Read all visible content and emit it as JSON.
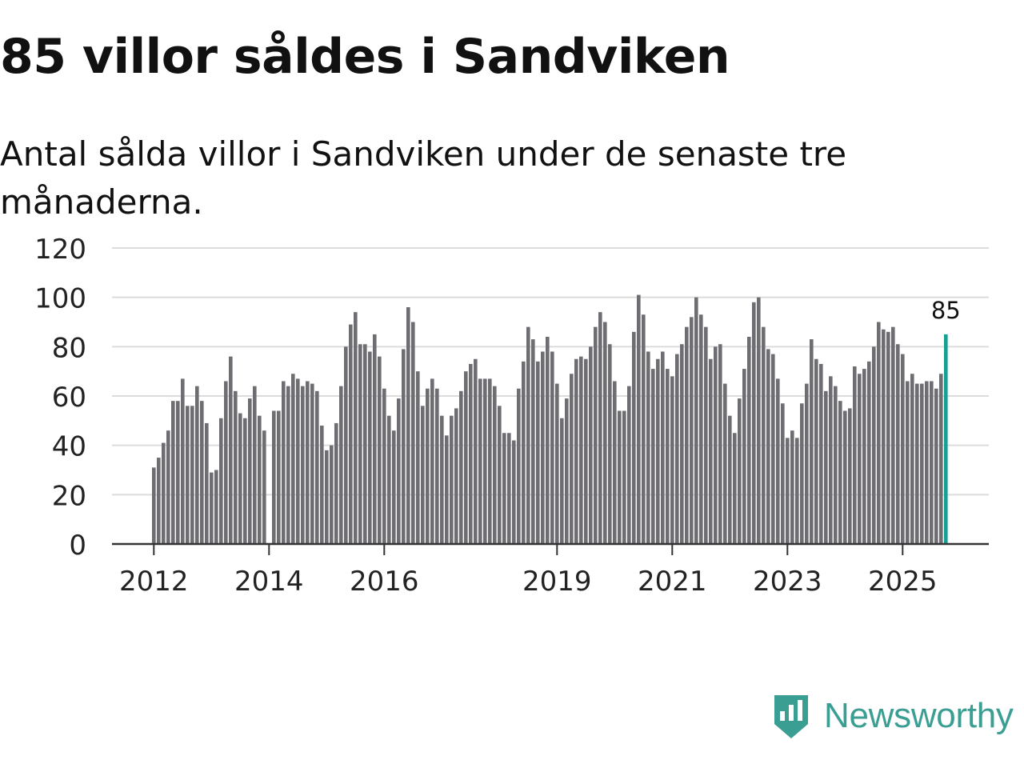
{
  "title": "85 villor såldes i Sandviken",
  "subtitle": "Antal sålda villor i Sandviken under de senaste tre månaderna.",
  "brand": {
    "name": "Newsworthy",
    "color": "#3a9e92"
  },
  "colors": {
    "bar": "#6e6d72",
    "highlight": "#16a093",
    "grid": "#dcdcdc",
    "axis": "#333333"
  },
  "chart_data": {
    "type": "bar",
    "title": "85 villor såldes i Sandviken",
    "xlabel": "",
    "ylabel": "",
    "ylim": [
      0,
      120
    ],
    "yticks": [
      "0",
      "20",
      "40",
      "60",
      "80",
      "100",
      "120"
    ],
    "x_tick_labels": [
      {
        "label": "2012",
        "index": 0
      },
      {
        "label": "2014",
        "index": 24
      },
      {
        "label": "2016",
        "index": 48
      },
      {
        "label": "2019",
        "index": 84
      },
      {
        "label": "2021",
        "index": 108
      },
      {
        "label": "2023",
        "index": 132
      },
      {
        "label": "2025",
        "index": 156
      }
    ],
    "start": "2012-01",
    "values": [
      31,
      35,
      41,
      46,
      58,
      58,
      67,
      56,
      56,
      64,
      58,
      49,
      29,
      30,
      51,
      66,
      76,
      62,
      53,
      51,
      59,
      64,
      52,
      46,
      0,
      54,
      54,
      66,
      64,
      69,
      67,
      64,
      66,
      65,
      62,
      48,
      38,
      40,
      49,
      64,
      80,
      89,
      94,
      81,
      81,
      78,
      85,
      76,
      63,
      52,
      46,
      59,
      79,
      96,
      90,
      70,
      56,
      63,
      67,
      63,
      52,
      44,
      52,
      55,
      62,
      70,
      73,
      75,
      67,
      67,
      67,
      64,
      56,
      45,
      45,
      42,
      63,
      74,
      88,
      83,
      74,
      78,
      84,
      78,
      65,
      51,
      59,
      69,
      75,
      76,
      75,
      80,
      88,
      94,
      90,
      81,
      66,
      54,
      54,
      64,
      86,
      101,
      93,
      78,
      71,
      75,
      78,
      71,
      68,
      77,
      81,
      88,
      92,
      100,
      93,
      88,
      75,
      80,
      81,
      65,
      52,
      45,
      59,
      71,
      84,
      98,
      100,
      88,
      79,
      77,
      67,
      57,
      43,
      46,
      43,
      57,
      65,
      83,
      75,
      73,
      62,
      68,
      64,
      58,
      54,
      55,
      72,
      69,
      71,
      74,
      80,
      90,
      87,
      86,
      88,
      81,
      77,
      66,
      69,
      65,
      65,
      66,
      66,
      63,
      69,
      85
    ],
    "highlight_index": 165,
    "highlight_label": "85"
  }
}
